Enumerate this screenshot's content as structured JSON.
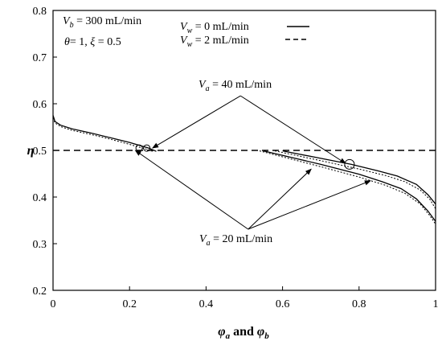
{
  "chart_data": {
    "type": "line",
    "xlabel": {
      "a": "φ",
      "a_sub": "a",
      "mid": " and ",
      "b": "φ",
      "b_sub": "b"
    },
    "ylabel": "η",
    "xlim": [
      0,
      1
    ],
    "ylim": [
      0.2,
      0.8
    ],
    "xticks": [
      "0",
      "0.2",
      "0.4",
      "0.6",
      "0.8",
      "1"
    ],
    "yticks": [
      "0.2",
      "0.3",
      "0.4",
      "0.5",
      "0.6",
      "0.7",
      "0.8"
    ],
    "conditions": {
      "vb_label": "V",
      "vb_sub": "b",
      "vb_value": " = 300 mL/min",
      "params": {
        "theta": "θ",
        "theta_val": "= 1, ",
        "xi": "ξ",
        "xi_val": " = 0.5"
      }
    },
    "legend": [
      {
        "v": "V",
        "sub": "w",
        "text": " = 0 mL/min",
        "style": "solid"
      },
      {
        "v": "V",
        "sub": "w",
        "text": " = 2 mL/min",
        "style": "dashed"
      }
    ],
    "annotations": {
      "va40": {
        "v": "V",
        "sub": "a",
        "text": " = 40 mL/min"
      },
      "va20": {
        "v": "V",
        "sub": "a",
        "text": " = 20 mL/min"
      }
    },
    "reference_line": {
      "y": 0.5,
      "style": "dashed"
    },
    "series": [
      {
        "style": "solid",
        "points": [
          [
            0,
            0.575
          ],
          [
            0.005,
            0.562
          ],
          [
            0.02,
            0.554
          ],
          [
            0.05,
            0.546
          ],
          [
            0.1,
            0.537
          ],
          [
            0.15,
            0.527
          ],
          [
            0.2,
            0.517
          ],
          [
            0.25,
            0.505
          ],
          [
            0.27,
            0.498
          ]
        ]
      },
      {
        "style": "dotted",
        "points": [
          [
            0,
            0.57
          ],
          [
            0.005,
            0.559
          ],
          [
            0.02,
            0.551
          ],
          [
            0.05,
            0.543
          ],
          [
            0.1,
            0.534
          ],
          [
            0.15,
            0.524
          ],
          [
            0.2,
            0.513
          ],
          [
            0.25,
            0.501
          ],
          [
            0.26,
            0.498
          ]
        ]
      },
      {
        "style": "solid",
        "points": [
          [
            0.6,
            0.499
          ],
          [
            0.7,
            0.483
          ],
          [
            0.78,
            0.47
          ],
          [
            0.85,
            0.456
          ],
          [
            0.9,
            0.445
          ],
          [
            0.95,
            0.427
          ],
          [
            0.98,
            0.405
          ],
          [
            1.0,
            0.385
          ]
        ]
      },
      {
        "style": "dotted",
        "points": [
          [
            0.58,
            0.499
          ],
          [
            0.7,
            0.478
          ],
          [
            0.8,
            0.46
          ],
          [
            0.87,
            0.446
          ],
          [
            0.92,
            0.433
          ],
          [
            0.96,
            0.415
          ],
          [
            0.985,
            0.395
          ],
          [
            1.0,
            0.375
          ]
        ]
      },
      {
        "style": "solid",
        "points": [
          [
            0.55,
            0.499
          ],
          [
            0.7,
            0.47
          ],
          [
            0.8,
            0.449
          ],
          [
            0.86,
            0.433
          ],
          [
            0.91,
            0.418
          ],
          [
            0.95,
            0.396
          ],
          [
            0.98,
            0.37
          ],
          [
            1.0,
            0.348
          ]
        ]
      },
      {
        "style": "dotted",
        "points": [
          [
            0.54,
            0.499
          ],
          [
            0.7,
            0.465
          ],
          [
            0.8,
            0.443
          ],
          [
            0.87,
            0.425
          ],
          [
            0.92,
            0.408
          ],
          [
            0.96,
            0.385
          ],
          [
            0.985,
            0.36
          ],
          [
            1.0,
            0.342
          ]
        ]
      }
    ],
    "markers": [
      {
        "x": 0.225,
        "y": 0.505,
        "r": 4
      },
      {
        "x": 0.245,
        "y": 0.505,
        "r": 4
      },
      {
        "x": 0.775,
        "y": 0.47,
        "r": 6
      }
    ],
    "arrows": [
      {
        "from": [
          0.49,
          0.617
        ],
        "to": [
          0.26,
          0.505
        ]
      },
      {
        "from": [
          0.49,
          0.617
        ],
        "to": [
          0.765,
          0.472
        ]
      },
      {
        "from": [
          0.51,
          0.331
        ],
        "to": [
          0.215,
          0.5
        ]
      },
      {
        "from": [
          0.51,
          0.331
        ],
        "to": [
          0.675,
          0.46
        ]
      },
      {
        "from": [
          0.51,
          0.331
        ],
        "to": [
          0.83,
          0.435
        ]
      }
    ]
  }
}
